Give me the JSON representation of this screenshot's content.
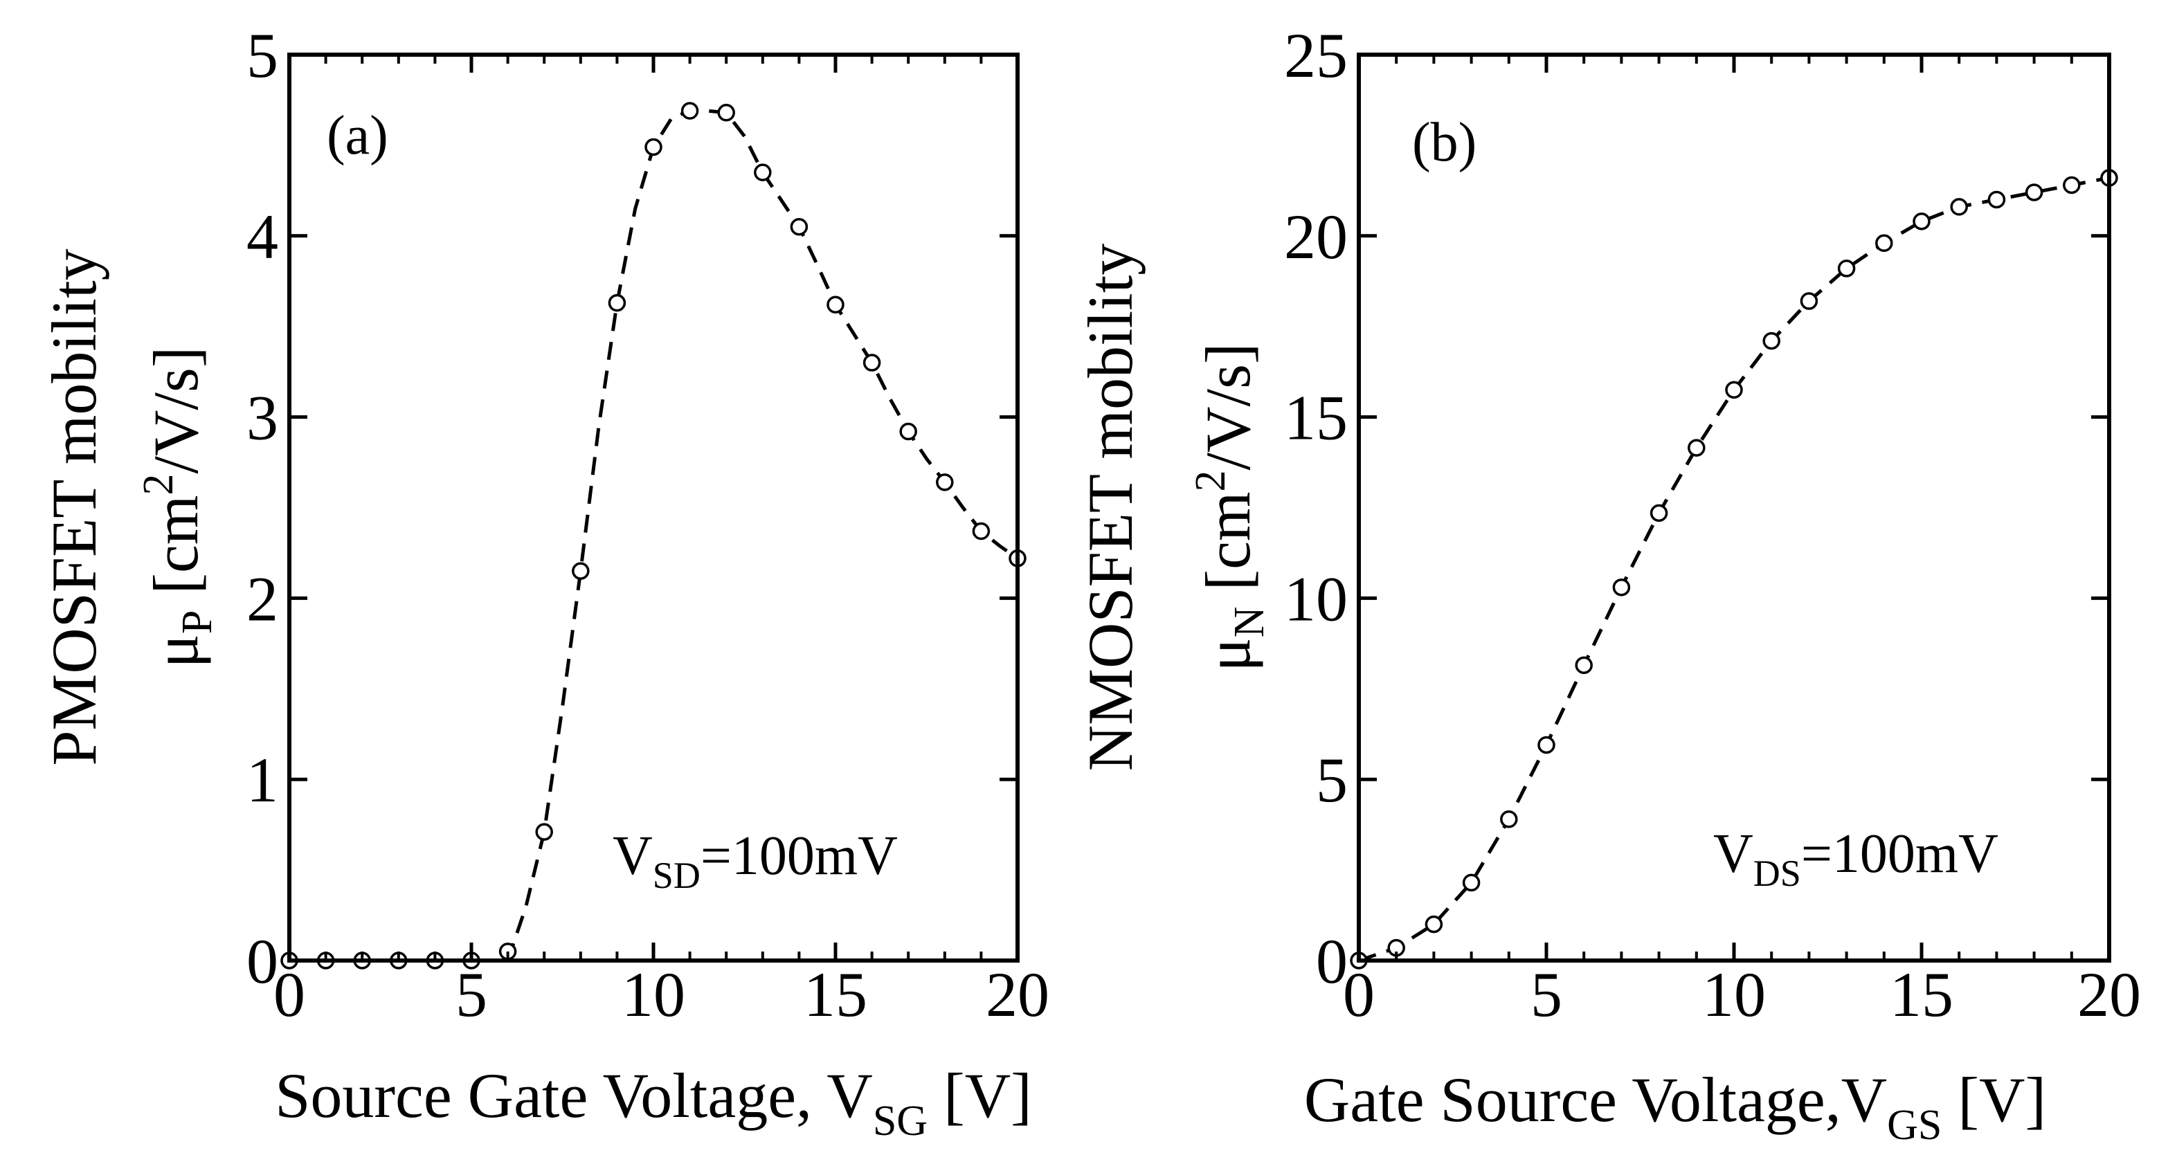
{
  "chart_data": [
    {
      "type": "scatter",
      "panel_label": "(a)",
      "title": "",
      "xlabel": {
        "main": "Source Gate Voltage, V",
        "sub": "SG",
        "unit": " [V]"
      },
      "ylabel": {
        "line1": "PMOSFET mobility",
        "mu": "μ",
        "mu_sub": "P",
        "unit_pre": " [cm",
        "unit_sup": "2",
        "unit_post": "/V/s]"
      },
      "annotation": {
        "pre": "V",
        "sub": "SD",
        "post": "=100mV"
      },
      "xlim": [
        0,
        20
      ],
      "ylim": [
        0,
        5
      ],
      "xticks": [
        0,
        5,
        10,
        15,
        20
      ],
      "yticks": [
        0,
        1,
        2,
        3,
        4,
        5
      ],
      "x_tick_labels": [
        "0",
        "5",
        "10",
        "15",
        "20"
      ],
      "y_tick_labels": [
        "0",
        "1",
        "2",
        "3",
        "4",
        "5"
      ],
      "grid": false,
      "series": [
        {
          "name": "PMOSFET mobility",
          "marker": "open-circle",
          "line": "dashed",
          "x": [
            0,
            1,
            2,
            3,
            4,
            5,
            6,
            7,
            8,
            9,
            10,
            11,
            12,
            13,
            14,
            15,
            16,
            17,
            18,
            19,
            20
          ],
          "y": [
            0.0,
            0.0,
            0.0,
            0.0,
            0.0,
            0.0,
            0.05,
            0.71,
            2.15,
            3.63,
            4.49,
            4.69,
            4.68,
            4.35,
            4.05,
            3.62,
            3.3,
            2.92,
            2.64,
            2.37,
            2.22
          ]
        }
      ],
      "fit_curve": {
        "x": [
          6.0,
          6.5,
          7.0,
          7.5,
          8.0,
          8.5,
          9.0,
          9.5,
          10.0,
          10.5,
          11.0,
          11.5,
          12.0,
          12.5,
          13.0,
          13.5,
          14.0,
          14.5,
          15.0,
          15.5,
          16.0,
          16.5,
          17.0,
          17.5,
          18.0,
          18.5,
          19.0,
          19.5,
          20.0
        ],
        "y": [
          0.0,
          0.3,
          0.71,
          1.4,
          2.15,
          2.95,
          3.63,
          4.15,
          4.49,
          4.65,
          4.69,
          4.69,
          4.68,
          4.55,
          4.35,
          4.2,
          4.05,
          3.84,
          3.62,
          3.46,
          3.3,
          3.1,
          2.92,
          2.77,
          2.64,
          2.5,
          2.37,
          2.29,
          2.22
        ]
      }
    },
    {
      "type": "scatter",
      "panel_label": "(b)",
      "title": "",
      "xlabel": {
        "main": "Gate Source Voltage,V",
        "sub": "GS",
        "unit": " [V]"
      },
      "ylabel": {
        "line1": "NMOSFET mobility",
        "mu": "μ",
        "mu_sub": "N",
        "unit_pre": " [cm",
        "unit_sup": "2",
        "unit_post": "/V/s]"
      },
      "annotation": {
        "pre": "V",
        "sub": "DS",
        "post": "=100mV"
      },
      "xlim": [
        0,
        20
      ],
      "ylim": [
        0,
        25
      ],
      "xticks": [
        0,
        5,
        10,
        15,
        20
      ],
      "yticks": [
        0,
        5,
        10,
        15,
        20,
        25
      ],
      "x_tick_labels": [
        "0",
        "5",
        "10",
        "15",
        "20"
      ],
      "y_tick_labels": [
        "0",
        "5",
        "10",
        "15",
        "20",
        "25"
      ],
      "grid": false,
      "series": [
        {
          "name": "NMOSFET mobility",
          "marker": "open-circle",
          "line": "dashed",
          "x": [
            0,
            1,
            2,
            3,
            4,
            5,
            6,
            7,
            8,
            9,
            10,
            11,
            12,
            13,
            14,
            15,
            16,
            17,
            18,
            19,
            20
          ],
          "y": [
            0.0,
            0.35,
            1.0,
            2.15,
            3.9,
            5.95,
            8.15,
            10.3,
            12.35,
            14.15,
            15.75,
            17.1,
            18.2,
            19.1,
            19.8,
            20.4,
            20.8,
            21.0,
            21.2,
            21.4,
            21.6
          ]
        }
      ],
      "fit_curve": {
        "x": [
          0,
          1,
          2,
          3,
          4,
          5,
          6,
          7,
          8,
          9,
          10,
          11,
          12,
          13,
          14,
          15,
          16,
          17,
          18,
          19,
          20
        ],
        "y": [
          0.0,
          0.35,
          1.0,
          2.15,
          3.9,
          5.95,
          8.15,
          10.3,
          12.35,
          14.15,
          15.75,
          17.1,
          18.2,
          19.1,
          19.8,
          20.4,
          20.8,
          21.0,
          21.2,
          21.4,
          21.6
        ]
      }
    }
  ]
}
